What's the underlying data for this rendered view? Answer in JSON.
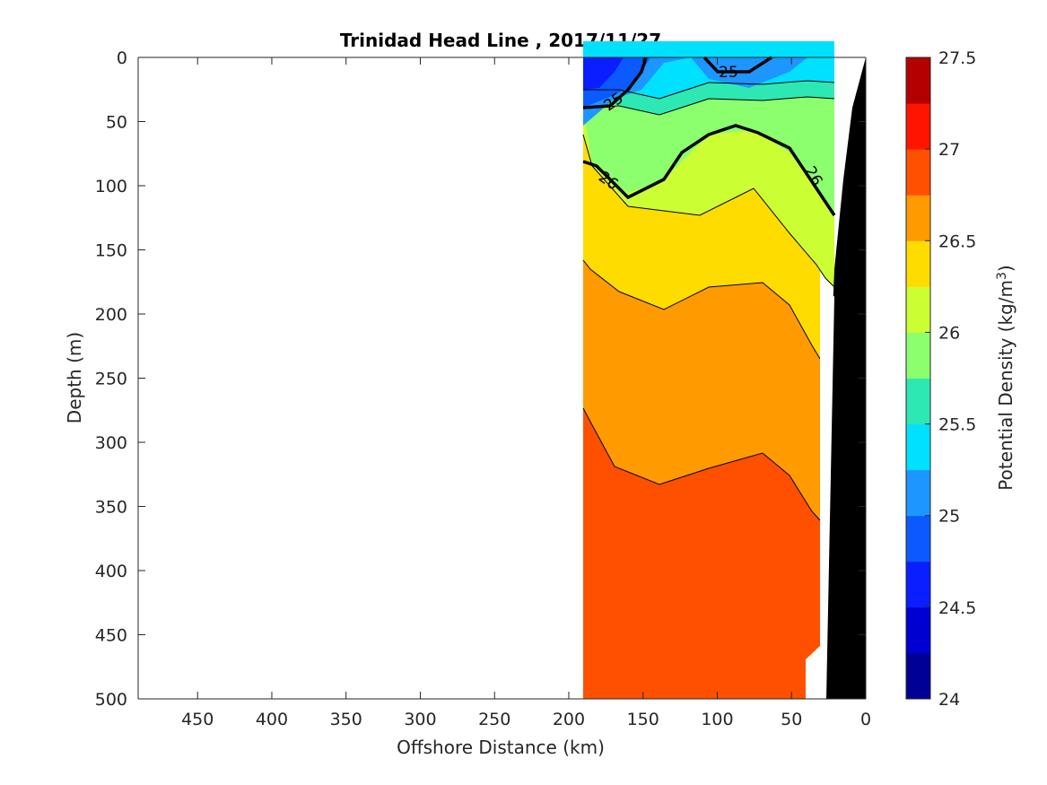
{
  "chart_data": {
    "type": "heatmap",
    "subtype": "filled-contour-section",
    "title": "Trinidad Head Line , 2017/11/27",
    "xlabel": "Offshore Distance (km)",
    "ylabel": "Depth (m)",
    "xlim": [
      490,
      0
    ],
    "ylim": [
      500,
      0
    ],
    "x_reversed": true,
    "y_reversed": true,
    "xticks": [
      450,
      400,
      350,
      300,
      250,
      200,
      150,
      100,
      50,
      0
    ],
    "yticks": [
      0,
      50,
      100,
      150,
      200,
      250,
      300,
      350,
      400,
      450,
      500
    ],
    "grid": false,
    "data_extent_km": [
      190,
      22
    ],
    "colorbar": {
      "label": "Potential Density (kg/m",
      "label_superscript": "3",
      "label_suffix": ")",
      "range": [
        24,
        27.5
      ],
      "ticks": [
        24,
        24.5,
        25,
        25.5,
        26,
        26.5,
        27,
        27.5
      ],
      "levels": [
        24,
        24.25,
        24.5,
        24.75,
        25,
        25.25,
        25.5,
        25.75,
        26,
        26.25,
        26.5,
        26.75,
        27,
        27.25,
        27.5
      ],
      "colors": [
        "#000096",
        "#0000d2",
        "#0a1eff",
        "#0a5aff",
        "#1e96ff",
        "#00e0ff",
        "#2ee8b4",
        "#8cff6e",
        "#ccff33",
        "#ffdc00",
        "#ff9b00",
        "#ff5000",
        "#ff1400",
        "#b40000"
      ]
    },
    "labeled_contours": [
      {
        "level": 25,
        "label": "25"
      },
      {
        "level": 26,
        "label": "26"
      }
    ],
    "bathymetry_color": "#000000"
  }
}
